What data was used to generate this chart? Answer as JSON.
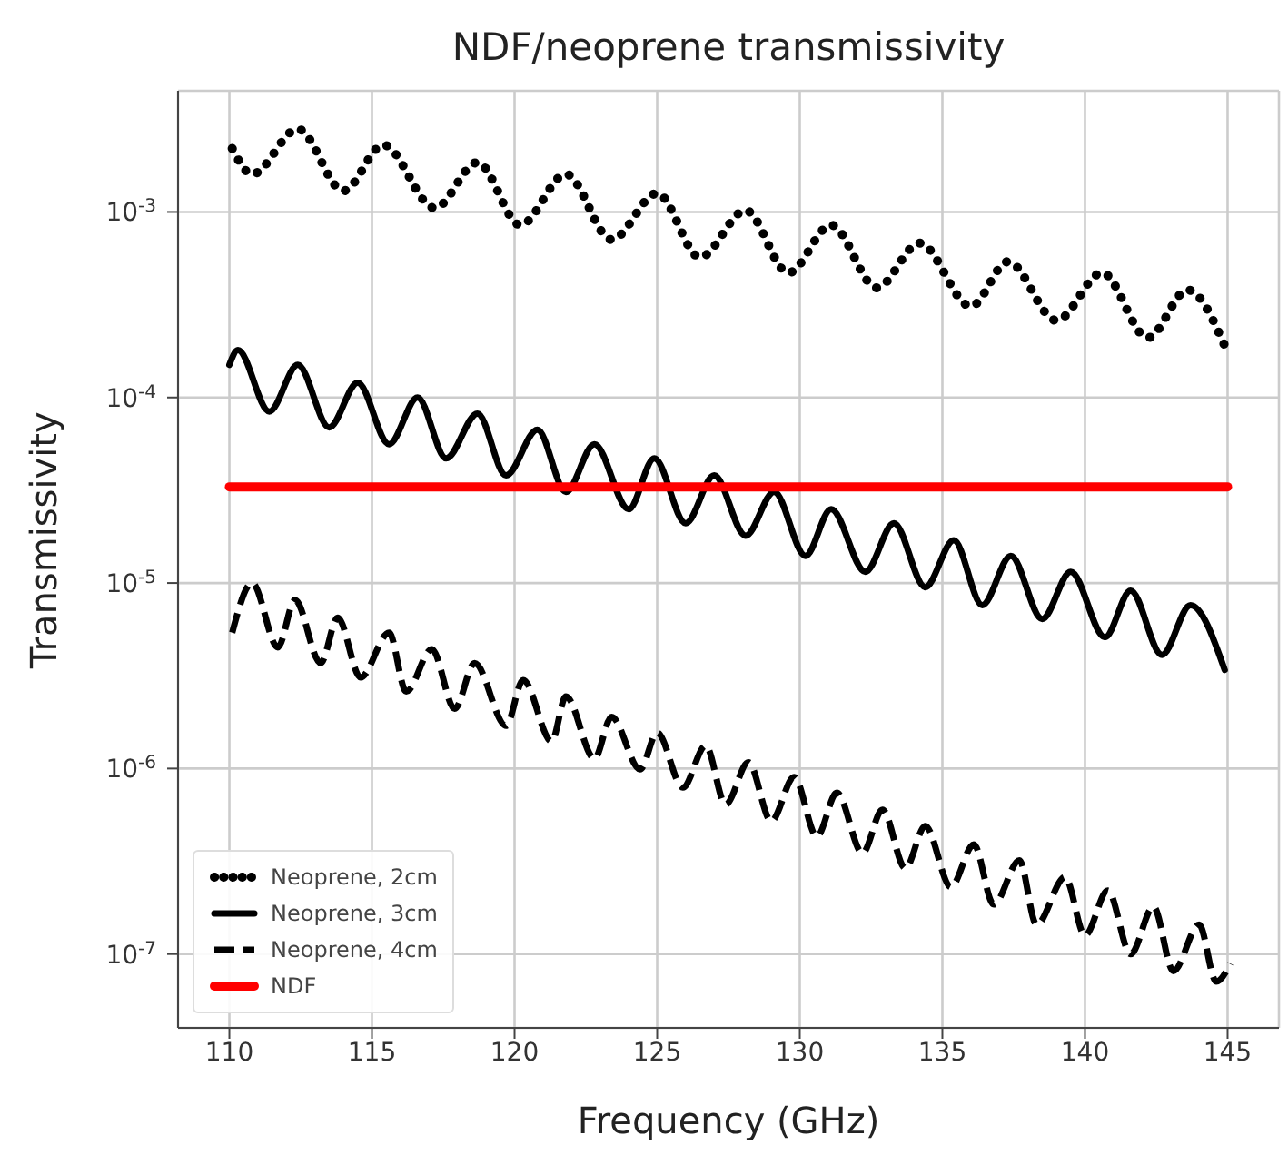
{
  "chart_data": {
    "type": "line",
    "title": "NDF/neoprene transmissivity",
    "xlabel": "Frequency (GHz)",
    "ylabel": "Transmissivity",
    "log": "y",
    "grid": true,
    "legend": "bottom left",
    "marker": "none",
    "xlim": [
      108.2,
      146.8
    ],
    "xticks": [
      110,
      115,
      120,
      125,
      130,
      135,
      140,
      145
    ],
    "ylim": [
      4e-08,
      0.0045
    ],
    "yticks": [
      {
        "value": 1e-07,
        "label": "10$^{-7}$"
      },
      {
        "value": 1e-06,
        "label": "10$^{-6}$"
      },
      {
        "value": 1e-05,
        "label": "10$^{-5}$"
      },
      {
        "value": 0.0001,
        "label": "10$^{-4}$"
      },
      {
        "value": 0.001,
        "label": "10$^{-3}$"
      }
    ],
    "series": [
      {
        "name": "Neoprene, 2cm",
        "color": "#000000",
        "line_style": "dotted",
        "x": [
          110.1,
          110.8,
          112.4,
          114.0,
          115.4,
          117.2,
          118.7,
          120.2,
          121.8,
          123.4,
          125.0,
          126.5,
          128.1,
          129.6,
          131.1,
          132.7,
          134.2,
          136.0,
          137.3,
          139.0,
          140.6,
          142.2,
          143.6,
          144.9
        ],
        "values": [
          0.0022,
          0.0016,
          0.0028,
          0.0013,
          0.0023,
          0.00105,
          0.00185,
          0.00085,
          0.0016,
          0.00071,
          0.00126,
          0.00057,
          0.00102,
          0.00047,
          0.00085,
          0.00039,
          0.00068,
          0.00031,
          0.00054,
          0.00026,
          0.00047,
          0.00021,
          0.00038,
          0.00019
        ]
      },
      {
        "name": "Neoprene, 3cm",
        "color": "#000000",
        "line_style": "solid",
        "x": [
          110.0,
          110.3,
          111.4,
          112.4,
          113.5,
          114.5,
          115.6,
          116.6,
          117.6,
          118.7,
          119.7,
          120.8,
          121.8,
          122.8,
          124.0,
          124.9,
          126.0,
          127.0,
          128.1,
          129.1,
          130.2,
          131.1,
          132.3,
          133.3,
          134.4,
          135.4,
          136.4,
          137.4,
          138.5,
          139.5,
          140.7,
          141.6,
          142.7,
          143.7,
          144.9
        ],
        "values": [
          0.00015,
          0.00018,
          8.4e-05,
          0.00015,
          6.9e-05,
          0.00012,
          5.6e-05,
          0.0001,
          4.7e-05,
          8.2e-05,
          3.8e-05,
          6.7e-05,
          3.1e-05,
          5.6e-05,
          2.5e-05,
          4.7e-05,
          2.1e-05,
          3.8e-05,
          1.8e-05,
          3.1e-05,
          1.4e-05,
          2.5e-05,
          1.15e-05,
          2.1e-05,
          9.5e-06,
          1.7e-05,
          7.6e-06,
          1.4e-05,
          6.4e-06,
          1.15e-05,
          5.1e-06,
          9.1e-06,
          4.1e-06,
          7.6e-06,
          3.4e-06
        ]
      },
      {
        "name": "Neoprene, 4cm",
        "color": "#000000",
        "line_style": "dashed",
        "x": [
          110.1,
          110.8,
          111.7,
          112.3,
          113.2,
          113.8,
          114.6,
          115.6,
          116.2,
          117.1,
          117.9,
          118.6,
          119.7,
          120.3,
          121.3,
          121.8,
          122.8,
          123.4,
          124.4,
          125.0,
          125.9,
          126.7,
          127.4,
          128.2,
          129.0,
          129.8,
          130.6,
          131.3,
          132.2,
          132.9,
          133.7,
          134.4,
          135.3,
          136.1,
          136.8,
          137.7,
          138.3,
          139.3,
          140.0,
          140.8,
          141.6,
          142.4,
          143.1,
          144.0,
          144.6,
          145.1
        ],
        "values": [
          5.4e-06,
          1e-05,
          4.5e-06,
          8.1e-06,
          3.7e-06,
          6.5e-06,
          3.1e-06,
          5.4e-06,
          2.6e-06,
          4.4e-06,
          2.1e-06,
          3.7e-06,
          1.7e-06,
          3e-06,
          1.4e-06,
          2.45e-06,
          1.13e-06,
          1.9e-06,
          9.9e-07,
          1.56e-06,
          7.9e-07,
          1.33e-06,
          6.4e-07,
          1.08e-06,
          5.2e-07,
          9e-07,
          4.3e-07,
          7.4e-07,
          3.5e-07,
          6e-07,
          2.9e-07,
          4.9e-07,
          2.3e-07,
          3.9e-07,
          1.85e-07,
          3.2e-07,
          1.44e-07,
          2.6e-07,
          1.26e-07,
          2.2e-07,
          1e-07,
          1.8e-07,
          8.1e-08,
          1.44e-07,
          7.1e-08,
          8.9e-08
        ]
      },
      {
        "name": "NDF",
        "color": "#ff0000",
        "line_style": "solid",
        "x": [
          110,
          145
        ],
        "values": [
          3.3e-05,
          3.3e-05
        ]
      }
    ]
  }
}
